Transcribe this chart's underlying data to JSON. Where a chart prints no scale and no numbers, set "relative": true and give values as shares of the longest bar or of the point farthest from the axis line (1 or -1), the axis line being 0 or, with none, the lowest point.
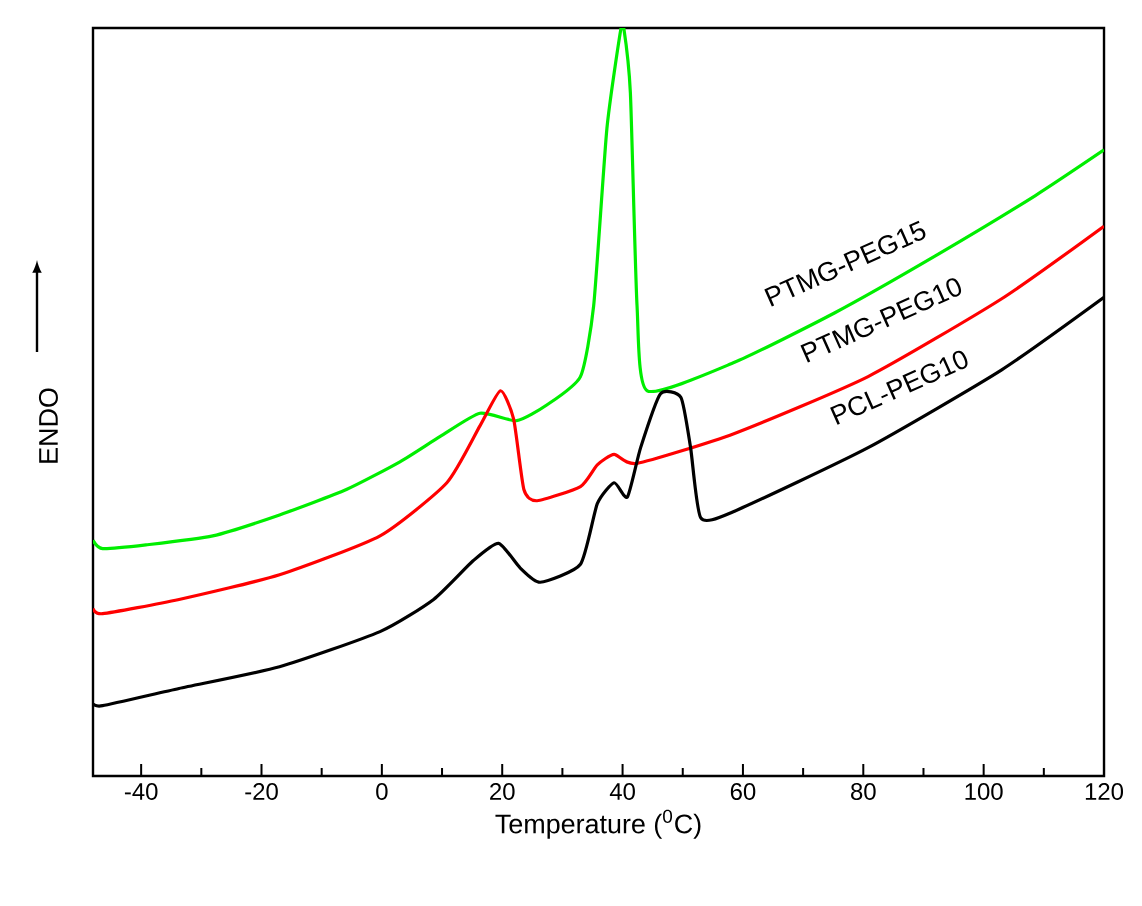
{
  "chart_data": {
    "type": "line",
    "relative": true,
    "xlabel": "Temperature ($^{0}$C)",
    "ylabel": "ENDO",
    "xlim": [
      -48,
      120
    ],
    "xticks": [
      -40,
      -20,
      0,
      20,
      40,
      60,
      80,
      100,
      120
    ],
    "legend": false,
    "grid": false,
    "marker": "none",
    "line_style": "solid",
    "series": [
      {
        "name": "PTMG-PEG15",
        "color": "#00ee00",
        "x": [
          -48,
          -46.4,
          -39.2,
          -28.1,
          -17,
          -5.9,
          3,
          9.7,
          16.3,
          22.4,
          27.4,
          33,
          35.2,
          37.4,
          39.7,
          40.2,
          41.3,
          42.4,
          44.1,
          58.6,
          75.2,
          91.9,
          108.6,
          120
        ],
        "values": [
          0.315,
          0.304,
          0.309,
          0.321,
          0.349,
          0.383,
          0.42,
          0.454,
          0.485,
          0.475,
          0.496,
          0.534,
          0.629,
          0.866,
          0.998,
          1.0,
          0.913,
          0.629,
          0.515,
          0.553,
          0.619,
          0.695,
          0.776,
          0.837
        ]
      },
      {
        "name": "PTMG-PEG10",
        "color": "#ff0000",
        "x": [
          -48,
          -46.4,
          -33.7,
          -17,
          -0.3,
          10.8,
          16.3,
          19.7,
          21.9,
          23.6,
          25.8,
          33,
          35.8,
          38.6,
          42.4,
          58.6,
          80.8,
          103,
          120
        ],
        "values": [
          0.224,
          0.217,
          0.236,
          0.269,
          0.321,
          0.392,
          0.468,
          0.515,
          0.477,
          0.383,
          0.368,
          0.387,
          0.416,
          0.43,
          0.418,
          0.458,
          0.534,
          0.638,
          0.735
        ]
      },
      {
        "name": "PCL-PEG10",
        "color": "#000000",
        "x": [
          -48,
          -46.4,
          -33.7,
          -17,
          -0.3,
          8.6,
          15.2,
          19.4,
          23,
          26.3,
          33,
          35.8,
          38.6,
          40.8,
          43,
          46.3,
          49.7,
          51.3,
          53,
          58.6,
          80.8,
          103,
          120
        ],
        "values": [
          0.097,
          0.094,
          0.117,
          0.146,
          0.193,
          0.236,
          0.288,
          0.311,
          0.278,
          0.259,
          0.283,
          0.364,
          0.392,
          0.373,
          0.439,
          0.511,
          0.506,
          0.439,
          0.345,
          0.354,
          0.439,
          0.543,
          0.64
        ]
      }
    ]
  }
}
